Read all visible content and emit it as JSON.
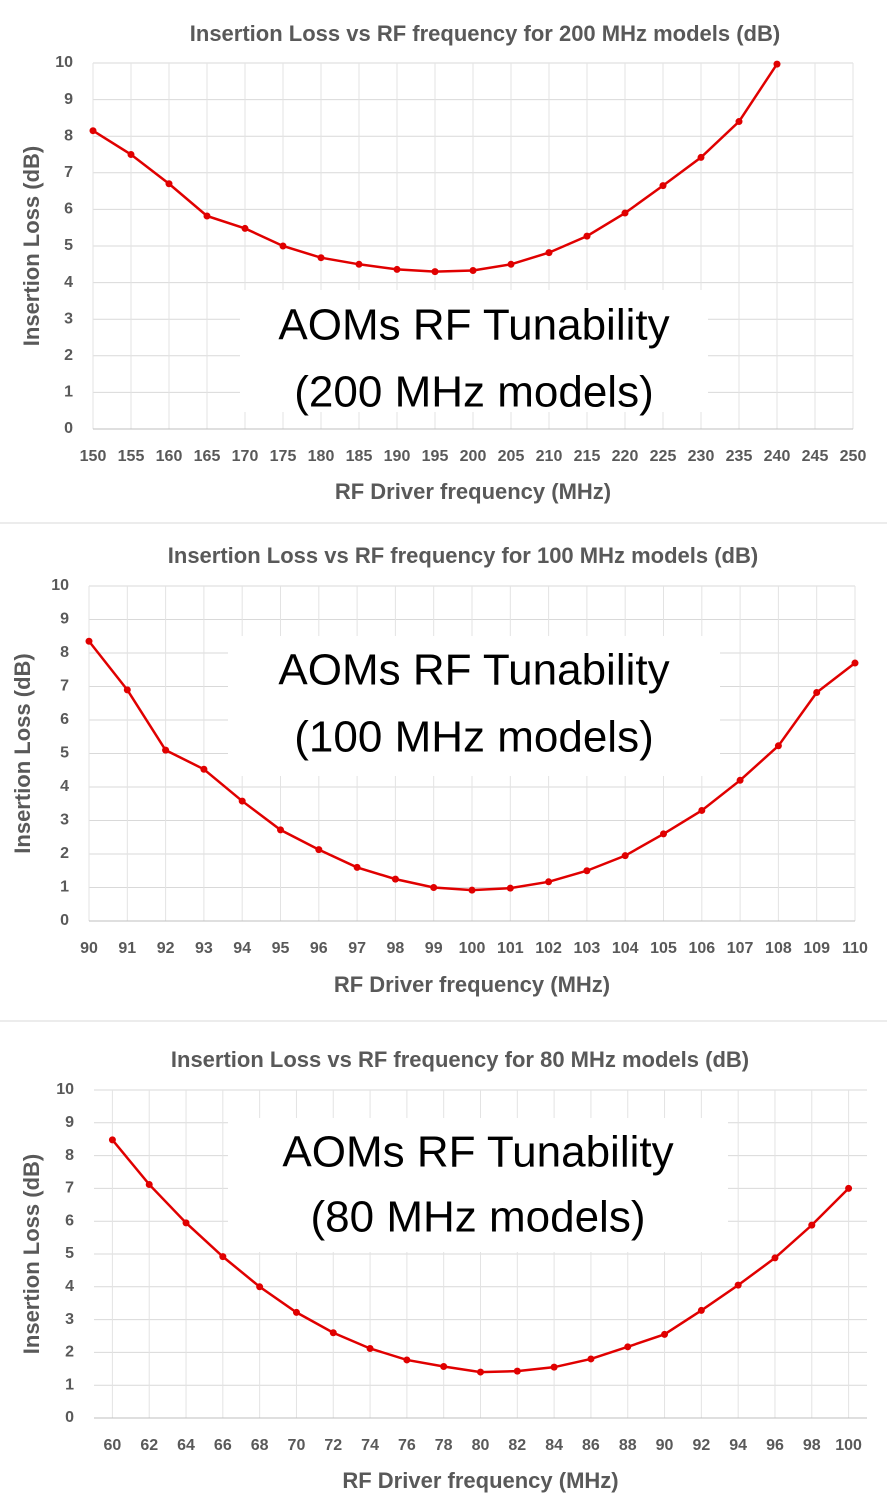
{
  "chart_data": [
    {
      "type": "line",
      "title": "Insertion Loss vs RF frequency for 200 MHz models (dB)",
      "xlabel": "RF Driver frequency (MHz)",
      "ylabel": "Insertion Loss (dB)",
      "annotation": [
        "AOMs RF Tunability",
        "(200 MHz models)"
      ],
      "x": [
        150,
        155,
        160,
        165,
        170,
        175,
        180,
        185,
        190,
        195,
        200,
        205,
        210,
        215,
        220,
        225,
        230,
        235,
        240
      ],
      "series": [
        {
          "name": "Insertion Loss",
          "color": "#e00000",
          "values": [
            8.15,
            7.5,
            6.7,
            5.82,
            5.48,
            5.0,
            4.68,
            4.5,
            4.36,
            4.3,
            4.33,
            4.5,
            4.82,
            5.27,
            5.9,
            6.65,
            7.42,
            8.4,
            9.97
          ]
        }
      ],
      "xlim": [
        150,
        250
      ],
      "xticks": [
        150,
        155,
        160,
        165,
        170,
        175,
        180,
        185,
        190,
        195,
        200,
        205,
        210,
        215,
        220,
        225,
        230,
        235,
        240,
        245,
        250
      ],
      "ylim": [
        0,
        10
      ],
      "yticks": [
        0,
        1,
        2,
        3,
        4,
        5,
        6,
        7,
        8,
        9,
        10
      ],
      "grid": true
    },
    {
      "type": "line",
      "title": "Insertion Loss vs RF frequency for 100 MHz models (dB)",
      "xlabel": "RF Driver frequency (MHz)",
      "ylabel": "Insertion Loss (dB)",
      "annotation": [
        "AOMs RF Tunability",
        "(100 MHz models)"
      ],
      "x": [
        90,
        91,
        92,
        93,
        94,
        95,
        96,
        97,
        98,
        99,
        100,
        101,
        102,
        103,
        104,
        105,
        106,
        107,
        108,
        109,
        110
      ],
      "series": [
        {
          "name": "Insertion Loss",
          "color": "#e00000",
          "values": [
            8.35,
            6.9,
            5.1,
            4.53,
            3.58,
            2.72,
            2.13,
            1.6,
            1.25,
            1.0,
            0.92,
            0.98,
            1.17,
            1.5,
            1.95,
            2.6,
            3.3,
            4.2,
            5.23,
            6.82,
            7.7
          ]
        }
      ],
      "xlim": [
        90,
        110
      ],
      "xticks": [
        90,
        91,
        92,
        93,
        94,
        95,
        96,
        97,
        98,
        99,
        100,
        101,
        102,
        103,
        104,
        105,
        106,
        107,
        108,
        109,
        110
      ],
      "ylim": [
        0,
        10
      ],
      "yticks": [
        0,
        1,
        2,
        3,
        4,
        5,
        6,
        7,
        8,
        9,
        10
      ],
      "grid": true
    },
    {
      "type": "line",
      "title": "Insertion Loss vs RF frequency for 80 MHz models (dB)",
      "xlabel": "RF Driver frequency (MHz)",
      "ylabel": "Insertion Loss (dB)",
      "annotation": [
        "AOMs RF Tunability",
        "(80 MHz models)"
      ],
      "x": [
        60,
        62,
        64,
        66,
        68,
        70,
        72,
        74,
        76,
        78,
        80,
        82,
        84,
        86,
        88,
        90,
        92,
        94,
        96,
        98,
        100
      ],
      "series": [
        {
          "name": "Insertion Loss",
          "color": "#e00000",
          "values": [
            8.48,
            7.12,
            5.95,
            4.92,
            4.0,
            3.22,
            2.6,
            2.12,
            1.77,
            1.57,
            1.4,
            1.43,
            1.55,
            1.8,
            2.17,
            2.55,
            3.28,
            4.05,
            4.88,
            5.88,
            7.0
          ]
        }
      ],
      "xlim": [
        59,
        101
      ],
      "xticks": [
        60,
        62,
        64,
        66,
        68,
        70,
        72,
        74,
        76,
        78,
        80,
        82,
        84,
        86,
        88,
        90,
        92,
        94,
        96,
        98,
        100
      ],
      "ylim": [
        0,
        10
      ],
      "yticks": [
        0,
        1,
        2,
        3,
        4,
        5,
        6,
        7,
        8,
        9,
        10
      ],
      "grid": true
    }
  ]
}
